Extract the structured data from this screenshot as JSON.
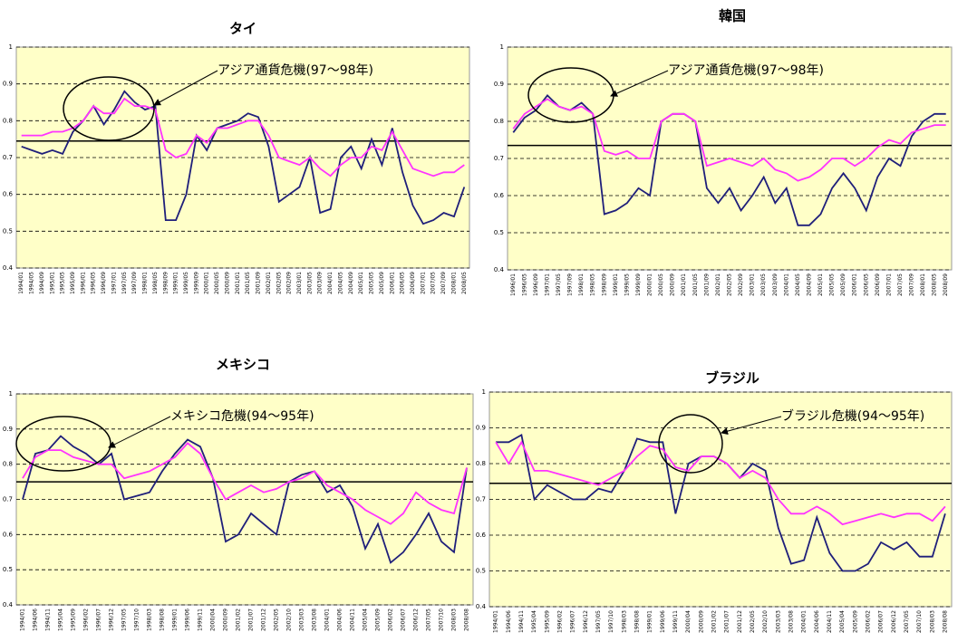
{
  "chart_data": [
    {
      "type": "line",
      "title": "タイ",
      "annotation": "アジア通貨危機(97～98年)",
      "hline": 0.745,
      "ylim": [
        0.4,
        1
      ],
      "yticks": [
        0.4,
        0.5,
        0.6,
        0.7,
        0.8,
        0.9,
        1
      ],
      "grid": true,
      "categories": [
        "1994/01",
        "1994/05",
        "1994/09",
        "1995/01",
        "1995/05",
        "1995/09",
        "1996/01",
        "1996/05",
        "1996/09",
        "1997/01",
        "1997/05",
        "1997/09",
        "1998/01",
        "1998/05",
        "1998/09",
        "1999/01",
        "1999/05",
        "1999/09",
        "2000/01",
        "2000/05",
        "2000/09",
        "2001/01",
        "2001/05",
        "2001/09",
        "2002/01",
        "2002/05",
        "2002/09",
        "2003/01",
        "2003/05",
        "2003/09",
        "2004/01",
        "2004/05",
        "2004/09",
        "2005/01",
        "2005/05",
        "2005/09",
        "2006/01",
        "2006/05",
        "2006/09",
        "2007/01",
        "2007/05",
        "2007/09",
        "2008/01",
        "2008/05"
      ],
      "series": [
        {
          "color": "#1f1f7a",
          "values": [
            0.73,
            0.72,
            0.71,
            0.72,
            0.71,
            0.77,
            0.8,
            0.84,
            0.79,
            0.83,
            0.88,
            0.85,
            0.83,
            0.84,
            0.53,
            0.53,
            0.6,
            0.76,
            0.72,
            0.78,
            0.79,
            0.8,
            0.82,
            0.81,
            0.73,
            0.58,
            0.6,
            0.62,
            0.7,
            0.55,
            0.56,
            0.7,
            0.73,
            0.67,
            0.75,
            0.68,
            0.78,
            0.66,
            0.57,
            0.52,
            0.53,
            0.55,
            0.54,
            0.62
          ]
        },
        {
          "color": "#ff33ff",
          "values": [
            0.76,
            0.76,
            0.76,
            0.77,
            0.77,
            0.78,
            0.8,
            0.84,
            0.82,
            0.82,
            0.86,
            0.84,
            0.84,
            0.83,
            0.72,
            0.7,
            0.71,
            0.76,
            0.74,
            0.78,
            0.78,
            0.79,
            0.8,
            0.8,
            0.76,
            0.7,
            0.69,
            0.68,
            0.7,
            0.67,
            0.65,
            0.68,
            0.7,
            0.7,
            0.73,
            0.72,
            0.77,
            0.72,
            0.67,
            0.66,
            0.65,
            0.66,
            0.66,
            0.68
          ]
        }
      ]
    },
    {
      "type": "line",
      "title": "韓国",
      "annotation": "アジア通貨危機(97～98年)",
      "hline": 0.735,
      "ylim": [
        0.4,
        1
      ],
      "yticks": [
        0.4,
        0.5,
        0.6,
        0.7,
        0.8,
        0.9,
        1
      ],
      "grid": true,
      "categories": [
        "1996/01",
        "1996/05",
        "1996/09",
        "1997/01",
        "1997/05",
        "1997/09",
        "1998/01",
        "1998/05",
        "1998/09",
        "1999/01",
        "1999/05",
        "1999/09",
        "2000/01",
        "2000/05",
        "2000/09",
        "2001/01",
        "2001/05",
        "2001/09",
        "2002/01",
        "2002/05",
        "2002/09",
        "2003/01",
        "2003/05",
        "2003/09",
        "2004/01",
        "2004/05",
        "2004/09",
        "2005/01",
        "2005/05",
        "2005/09",
        "2006/01",
        "2006/05",
        "2006/09",
        "2007/01",
        "2007/05",
        "2007/09",
        "2008/01",
        "2008/05",
        "2008/09"
      ],
      "series": [
        {
          "color": "#1f1f7a",
          "values": [
            0.77,
            0.81,
            0.83,
            0.87,
            0.84,
            0.83,
            0.85,
            0.82,
            0.55,
            0.56,
            0.58,
            0.62,
            0.6,
            0.8,
            0.82,
            0.82,
            0.8,
            0.62,
            0.58,
            0.62,
            0.56,
            0.6,
            0.65,
            0.58,
            0.62,
            0.52,
            0.52,
            0.55,
            0.62,
            0.66,
            0.62,
            0.56,
            0.65,
            0.7,
            0.68,
            0.76,
            0.8,
            0.82,
            0.82
          ]
        },
        {
          "color": "#ff33ff",
          "values": [
            0.78,
            0.82,
            0.84,
            0.86,
            0.84,
            0.83,
            0.84,
            0.82,
            0.72,
            0.71,
            0.72,
            0.7,
            0.7,
            0.8,
            0.82,
            0.82,
            0.8,
            0.68,
            0.69,
            0.7,
            0.69,
            0.68,
            0.7,
            0.67,
            0.66,
            0.64,
            0.65,
            0.67,
            0.7,
            0.7,
            0.68,
            0.7,
            0.73,
            0.75,
            0.74,
            0.77,
            0.78,
            0.79,
            0.79
          ]
        }
      ]
    },
    {
      "type": "line",
      "title": "メキシコ",
      "annotation": "メキシコ危機(94～95年)",
      "hline": 0.75,
      "ylim": [
        0.4,
        1
      ],
      "yticks": [
        0.4,
        0.5,
        0.6,
        0.7,
        0.8,
        0.9,
        1
      ],
      "grid": true,
      "categories": [
        "1994/01",
        "1994/06",
        "1994/11",
        "1995/04",
        "1995/09",
        "1996/02",
        "1996/07",
        "1996/12",
        "1997/05",
        "1997/10",
        "1998/03",
        "1998/08",
        "1999/01",
        "1999/06",
        "1999/11",
        "2000/04",
        "2000/09",
        "2001/02",
        "2001/07",
        "2001/12",
        "2002/05",
        "2002/10",
        "2003/03",
        "2003/08",
        "2004/01",
        "2004/06",
        "2004/11",
        "2005/04",
        "2005/09",
        "2006/02",
        "2006/07",
        "2006/12",
        "2007/05",
        "2007/10",
        "2008/03",
        "2008/08"
      ],
      "series": [
        {
          "color": "#1f1f7a",
          "values": [
            0.7,
            0.83,
            0.84,
            0.88,
            0.85,
            0.83,
            0.8,
            0.83,
            0.7,
            0.71,
            0.72,
            0.78,
            0.83,
            0.87,
            0.85,
            0.76,
            0.58,
            0.6,
            0.66,
            0.63,
            0.6,
            0.75,
            0.77,
            0.78,
            0.72,
            0.74,
            0.68,
            0.56,
            0.63,
            0.52,
            0.55,
            0.6,
            0.66,
            0.58,
            0.55,
            0.79
          ]
        },
        {
          "color": "#ff33ff",
          "values": [
            0.76,
            0.82,
            0.84,
            0.84,
            0.82,
            0.81,
            0.8,
            0.8,
            0.76,
            0.77,
            0.78,
            0.8,
            0.82,
            0.86,
            0.83,
            0.76,
            0.7,
            0.72,
            0.74,
            0.72,
            0.73,
            0.75,
            0.76,
            0.78,
            0.74,
            0.72,
            0.7,
            0.67,
            0.65,
            0.63,
            0.66,
            0.72,
            0.69,
            0.67,
            0.66,
            0.79
          ]
        }
      ]
    },
    {
      "type": "line",
      "title": "ブラジル",
      "annotation": "ブラジル危機(94～95年)",
      "hline": 0.745,
      "ylim": [
        0.4,
        1
      ],
      "yticks": [
        0.4,
        0.5,
        0.6,
        0.7,
        0.8,
        0.9,
        1
      ],
      "grid": true,
      "categories": [
        "1994/01",
        "1994/06",
        "1994/11",
        "1995/04",
        "1995/09",
        "1996/02",
        "1996/07",
        "1996/12",
        "1997/05",
        "1997/10",
        "1998/03",
        "1998/08",
        "1999/01",
        "1999/06",
        "1999/11",
        "2000/04",
        "2000/09",
        "2001/02",
        "2001/07",
        "2001/12",
        "2002/05",
        "2002/10",
        "2003/03",
        "2003/08",
        "2004/01",
        "2004/06",
        "2004/11",
        "2005/04",
        "2005/09",
        "2006/02",
        "2006/07",
        "2006/12",
        "2007/05",
        "2007/10",
        "2008/03",
        "2008/08"
      ],
      "series": [
        {
          "color": "#1f1f7a",
          "values": [
            0.86,
            0.86,
            0.88,
            0.7,
            0.74,
            0.72,
            0.7,
            0.7,
            0.73,
            0.72,
            0.78,
            0.87,
            0.86,
            0.86,
            0.66,
            0.8,
            0.82,
            0.82,
            0.8,
            0.76,
            0.8,
            0.78,
            0.62,
            0.52,
            0.53,
            0.65,
            0.55,
            0.5,
            0.5,
            0.52,
            0.58,
            0.56,
            0.58,
            0.54,
            0.54,
            0.66
          ]
        },
        {
          "color": "#ff33ff",
          "values": [
            0.86,
            0.8,
            0.86,
            0.78,
            0.78,
            0.77,
            0.76,
            0.75,
            0.74,
            0.76,
            0.78,
            0.82,
            0.85,
            0.84,
            0.79,
            0.78,
            0.82,
            0.82,
            0.8,
            0.76,
            0.78,
            0.76,
            0.7,
            0.66,
            0.66,
            0.68,
            0.66,
            0.63,
            0.64,
            0.65,
            0.66,
            0.65,
            0.66,
            0.66,
            0.64,
            0.68
          ]
        }
      ]
    }
  ]
}
